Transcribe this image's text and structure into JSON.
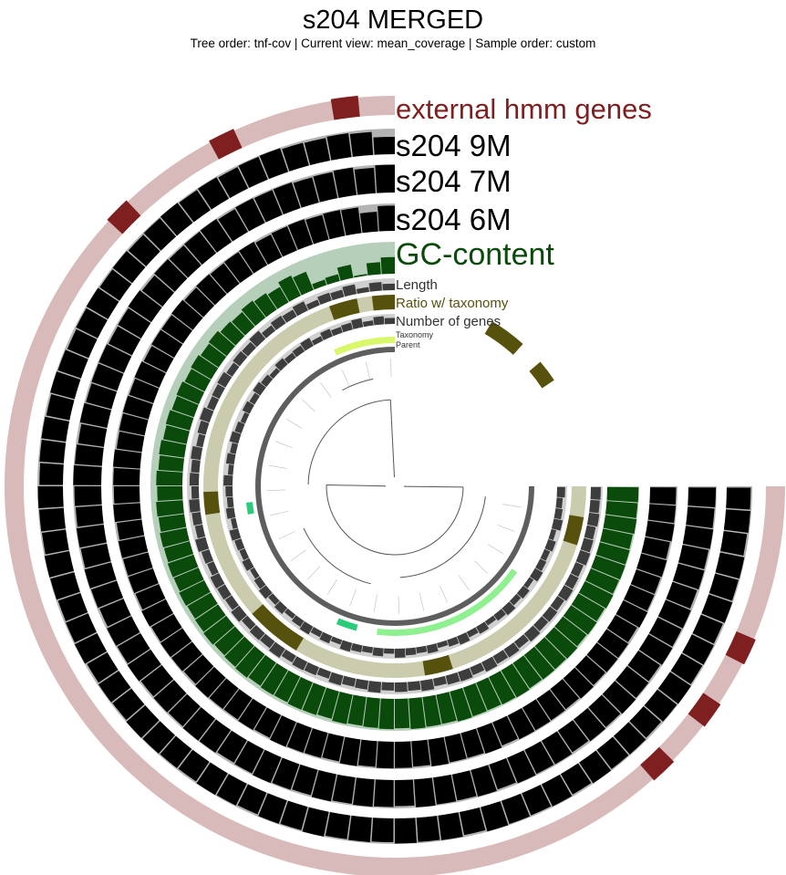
{
  "header": {
    "title": "s204 MERGED",
    "subtitle": "Tree order: tnf-cov | Current view: mean_coverage | Sample order: custom"
  },
  "layers": [
    {
      "key": "hmm",
      "label": "external hmm genes",
      "color": "#7f1f1f",
      "bg": "#d9baba",
      "type": "hmm"
    },
    {
      "key": "s9m",
      "label": "s204 9M",
      "color": "#000000",
      "bg": "#b3b3b3",
      "type": "bar"
    },
    {
      "key": "s7m",
      "label": "s204 7M",
      "color": "#000000",
      "bg": "#b3b3b3",
      "type": "bar"
    },
    {
      "key": "s6m",
      "label": "s204 6M",
      "color": "#000000",
      "bg": "#b3b3b3",
      "type": "bar"
    },
    {
      "key": "gc",
      "label": "GC-content",
      "color": "#0a4a0a",
      "bg": "#b6cfba",
      "type": "bar"
    },
    {
      "key": "length",
      "label": "Length",
      "color": "#3d3d3d",
      "bg": "#d0d0d0",
      "type": "bar"
    },
    {
      "key": "ratio",
      "label": "Ratio w/ taxonomy",
      "color": "#56510c",
      "bg": "#cbcbad",
      "type": "bar"
    },
    {
      "key": "genes",
      "label": "Number of genes",
      "color": "#3d3d3d",
      "bg": "#d0d0d0",
      "type": "bar"
    },
    {
      "key": "taxonomy",
      "label": "Taxonomy",
      "color": "#8ef08e",
      "bg": "#ffffff",
      "type": "tax"
    },
    {
      "key": "parent",
      "label": "Parent",
      "color": "#5e5e5e",
      "bg": "#ffffff",
      "type": "parent"
    }
  ],
  "label_colors": {
    "hmm": "#7f1f1f",
    "s9m": "#000000",
    "s7m": "#000000",
    "s6m": "#000000",
    "gc": "#0a4a0a",
    "length": "#333333",
    "ratio": "#56510c",
    "genes": "#333333",
    "taxonomy": "#333333",
    "parent": "#333333"
  },
  "values": {
    "s9m": [
      0.68,
      0.9,
      0.94,
      0.9,
      0.92,
      0.98,
      0.96,
      0.93,
      0.97,
      0.95,
      0.99,
      0.96,
      0.93,
      0.97,
      0.94,
      0.98,
      0.95,
      0.91,
      0.96,
      0.99,
      0.93,
      0.97,
      0.95,
      0.92,
      0.98,
      0.96,
      0.94,
      0.99,
      0.97,
      0.93,
      0.95,
      0.98,
      0.92,
      0.96,
      0.94,
      0.99,
      0.97,
      0.95,
      0.93,
      0.98,
      0.96,
      0.92,
      0.97,
      0.95,
      0.99,
      0.94,
      0.96,
      0.93,
      0.98,
      0.95,
      0.97,
      0.92,
      0.99,
      0.96,
      0.94,
      0.97,
      0.93,
      0.98,
      0.95,
      0.96,
      0.92,
      0.97,
      0.99,
      0.94,
      0.96,
      0.93,
      0.98,
      0.95,
      0.97,
      0.92,
      0.96,
      0.94
    ],
    "s7m": [
      0.98,
      0.9,
      0.98,
      0.94,
      0.92,
      0.96,
      0.95,
      0.97,
      0.93,
      0.98,
      0.96,
      0.94,
      0.97,
      0.92,
      0.99,
      0.95,
      0.93,
      0.97,
      0.96,
      0.94,
      0.98,
      0.92,
      0.96,
      0.99,
      0.95,
      0.93,
      0.97,
      0.94,
      0.98,
      0.96,
      0.92,
      0.97,
      0.95,
      0.99,
      0.93,
      0.96,
      0.94,
      0.98,
      0.97,
      0.92,
      0.95,
      0.99,
      0.96,
      0.93,
      0.98,
      0.94,
      0.97,
      0.95,
      0.92,
      0.99,
      0.96,
      0.94,
      0.97,
      0.93,
      0.98,
      0.95,
      0.96,
      0.92,
      0.97,
      0.94,
      0.99,
      0.96,
      0.93,
      0.98,
      0.95,
      0.97,
      0.92,
      0.96,
      0.94,
      0.98,
      0.95,
      0.97
    ],
    "s6m": [
      0.92,
      0.72,
      0.94,
      0.96,
      0.93,
      0.97,
      0.95,
      0.92,
      0.98,
      0.96,
      0.94,
      0.97,
      0.93,
      0.99,
      0.95,
      0.96,
      0.92,
      0.98,
      0.94,
      0.97,
      0.95,
      0.93,
      0.99,
      0.96,
      0.94,
      0.98,
      0.92,
      0.97,
      0.95,
      0.96,
      0.93,
      0.99,
      0.94,
      0.97,
      0.96,
      0.92,
      0.98,
      0.95,
      0.94,
      0.97,
      0.93,
      0.99,
      0.96,
      0.95,
      0.92,
      0.98,
      0.94,
      0.97,
      0.96,
      0.93,
      0.99,
      0.95,
      0.94,
      0.98,
      0.92,
      0.97,
      0.96,
      0.95,
      0.93,
      0.98,
      0.94,
      0.97,
      0.96,
      0.92,
      0.99,
      0.95,
      0.94,
      0.97,
      0.93,
      0.98,
      0.96,
      0.95
    ],
    "gc": [
      0.52,
      0.38,
      0.05,
      0.42,
      0.22,
      0.18,
      0.62,
      0.7,
      0.55,
      0.62,
      0.67,
      0.6,
      0.64,
      0.72,
      0.68,
      0.74,
      0.7,
      0.76,
      0.73,
      0.78,
      0.75,
      0.8,
      0.77,
      0.82,
      0.79,
      0.84,
      0.81,
      0.85,
      0.83,
      0.86,
      0.84,
      0.88,
      0.85,
      0.87,
      0.9,
      0.86,
      0.89,
      0.92,
      0.88,
      0.91,
      0.9,
      0.93,
      0.92,
      0.89,
      0.94,
      0.91,
      0.93,
      0.95,
      0.92,
      0.96,
      0.94,
      0.93,
      0.97,
      0.95,
      0.94,
      0.96,
      0.98,
      0.95,
      0.97,
      0.96,
      0.98,
      0.94,
      0.97,
      0.95,
      0.99,
      0.96,
      0.98,
      0.97,
      0.95,
      0.99,
      0.97,
      0.98
    ],
    "length": [
      0.55,
      0.72,
      0.4,
      0.82,
      0.62,
      0.7,
      0.5,
      0.85,
      0.66,
      0.76,
      0.58,
      0.9,
      0.68,
      0.74,
      0.6,
      0.8,
      0.7,
      0.64,
      0.88,
      0.72,
      0.56,
      0.84,
      0.7,
      0.78,
      0.62,
      0.86,
      0.74,
      0.66,
      0.9,
      0.7,
      0.6,
      0.82,
      0.76,
      0.68,
      0.88,
      0.64,
      0.78,
      0.72,
      0.9,
      0.66,
      0.8,
      0.74,
      0.62,
      0.86,
      0.7,
      0.76,
      0.92,
      0.68,
      0.8,
      0.74,
      0.88,
      0.66,
      0.78,
      0.84,
      0.7,
      0.9,
      0.76,
      0.82,
      0.68,
      0.88,
      0.74,
      0.8,
      0.7,
      0.86,
      0.78,
      0.72,
      0.9,
      0.82,
      0.76,
      0.88,
      0.8,
      0.84
    ],
    "ratio": [
      0.0,
      0.72,
      0.0,
      0.45,
      0.0,
      0.0,
      0.0,
      0.0,
      0.0,
      0.0,
      0.0,
      0.0,
      0.0,
      0.0,
      0.0,
      0.0,
      0.0,
      0.0,
      0.0,
      0.0,
      0.0,
      0.0,
      0.0,
      0.0,
      0.0,
      0.55,
      0.0,
      0.0,
      0.0,
      0.0,
      0.0,
      0.0,
      0.0,
      0.0,
      0.0,
      0.0,
      0.0,
      0.0,
      0.0,
      0.0,
      0.0,
      0.0,
      0.0,
      0.0,
      0.0,
      0.0,
      0.0,
      0.6,
      0.0,
      0.0,
      0.0,
      0.0,
      0.0,
      0.0,
      0.0,
      0.0,
      0.0,
      0.0,
      0.0,
      0.0,
      0.0,
      0.0,
      0.0,
      0.0,
      0.0,
      0.0,
      0.7,
      0.0,
      0.0,
      0.75,
      0.0,
      0.8
    ],
    "genes": [
      0.6,
      0.8,
      0.5,
      0.9,
      0.7,
      0.6,
      0.8,
      0.5,
      0.9,
      0.7,
      0.6,
      0.8,
      0.5,
      0.7,
      0.9,
      0.6,
      0.8,
      0.5,
      0.7,
      0.9,
      0.6,
      0.8,
      0.5,
      0.9,
      0.7,
      0.6,
      0.8,
      0.5,
      0.9,
      0.7,
      0.6,
      0.8,
      0.5,
      0.7,
      0.9,
      0.6,
      0.8,
      0.5,
      0.7,
      0.9,
      0.6,
      0.8,
      0.5,
      0.9,
      0.7,
      0.6,
      0.8,
      0.5,
      0.9,
      0.7,
      0.6,
      0.8,
      0.5,
      0.7,
      0.9,
      0.6,
      0.8,
      0.5,
      0.7,
      0.9,
      0.6,
      0.8,
      0.5,
      0.9,
      0.7,
      0.6,
      0.8,
      0.5,
      0.9,
      0.7,
      0.6,
      0.8
    ]
  },
  "ratio_extra": {
    "note": "",
    "ranges": [
      [
        0,
        0.12
      ],
      [
        0.2,
        0.35
      ],
      [
        1.6,
        1.72
      ],
      [
        2.3,
        2.6
      ],
      [
        3.3,
        3.45
      ],
      [
        4.4,
        4.55
      ],
      [
        5.3,
        5.42
      ],
      [
        5.55,
        5.75
      ]
    ]
  },
  "hmm_hits": [
    0.02,
    0.09,
    0.16,
    0.82,
    0.86,
    0.9
  ],
  "taxonomy_bands": [
    {
      "from": 0.0,
      "to": 0.42,
      "color": "#d8f76a"
    },
    {
      "from": 1.68,
      "to": 1.76,
      "color": "#2bcc79"
    },
    {
      "from": 2.74,
      "to": 2.88,
      "color": "#2bcc79"
    },
    {
      "from": 3.02,
      "to": 4.1,
      "color": "#8ef08e"
    }
  ]
}
